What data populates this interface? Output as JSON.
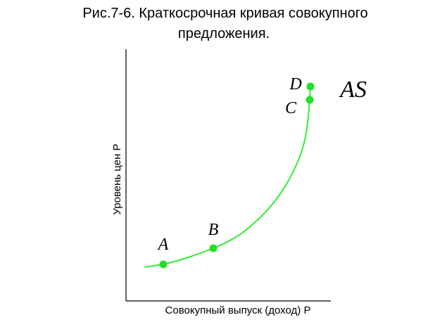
{
  "title": {
    "line1": "Рис.7-6. Краткосрочная кривая совокупного",
    "line2": "предложения."
  },
  "axes": {
    "x_label": "Совокупный выпуск (доход) Р",
    "y_label": "Уровень цен Р"
  },
  "curve": {
    "label": "AS"
  },
  "points": [
    {
      "label": "A"
    },
    {
      "label": "B"
    },
    {
      "label": "C"
    },
    {
      "label": "D"
    }
  ]
}
